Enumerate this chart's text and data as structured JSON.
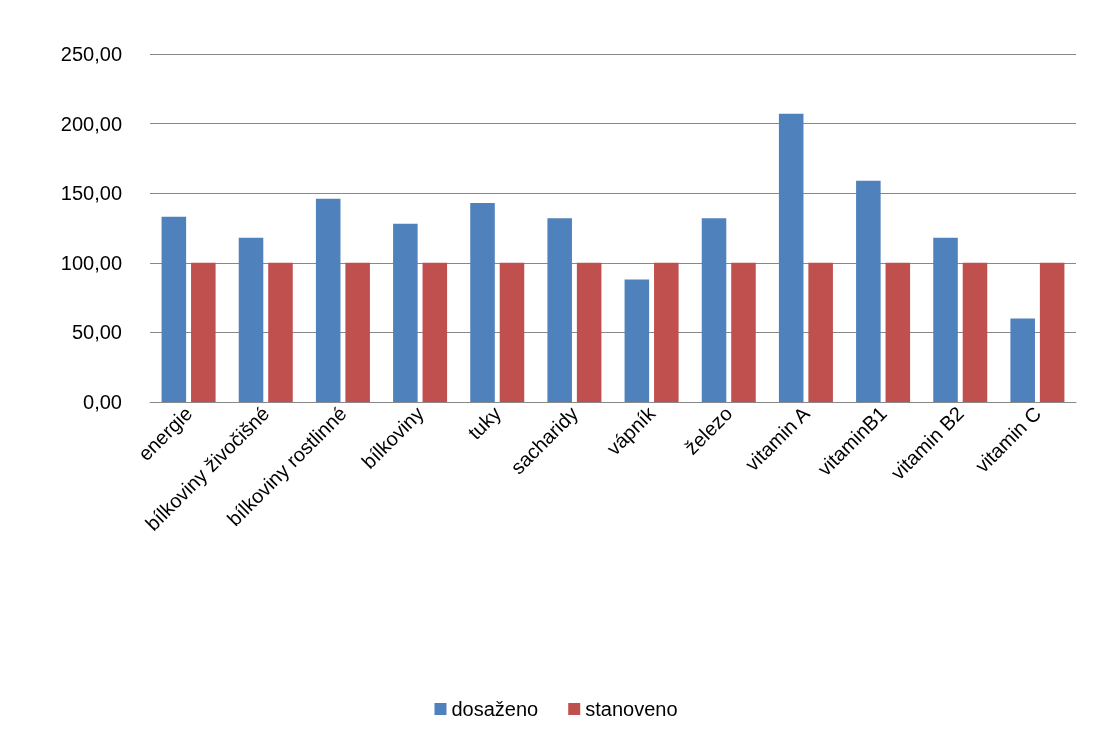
{
  "chart_data": {
    "type": "bar",
    "categories": [
      "energie",
      "bílkoviny živočišné",
      "bílkoviny rostlinné",
      "bílkoviny",
      "tuky",
      "sacharidy",
      "vápník",
      "železo",
      "vitamin A",
      "vitaminB1",
      "vitamin B2",
      "vitamin C"
    ],
    "series": [
      {
        "name": "dosaženo",
        "color": "#4f81bd",
        "values": [
          133,
          118,
          146,
          128,
          143,
          132,
          88,
          132,
          207,
          159,
          118,
          60
        ]
      },
      {
        "name": "stanoveno",
        "color": "#c0504d",
        "values": [
          100,
          100,
          100,
          100,
          100,
          100,
          100,
          100,
          100,
          100,
          100,
          100
        ]
      }
    ],
    "ylim": [
      0,
      250
    ],
    "yticks": [
      {
        "value": 0,
        "label": "0,00"
      },
      {
        "value": 50,
        "label": "50,00"
      },
      {
        "value": 100,
        "label": "100,00"
      },
      {
        "value": 150,
        "label": "150,00"
      },
      {
        "value": 200,
        "label": "200,00"
      },
      {
        "value": 250,
        "label": "250,00"
      }
    ],
    "grid": "y",
    "legend": "bottom"
  }
}
